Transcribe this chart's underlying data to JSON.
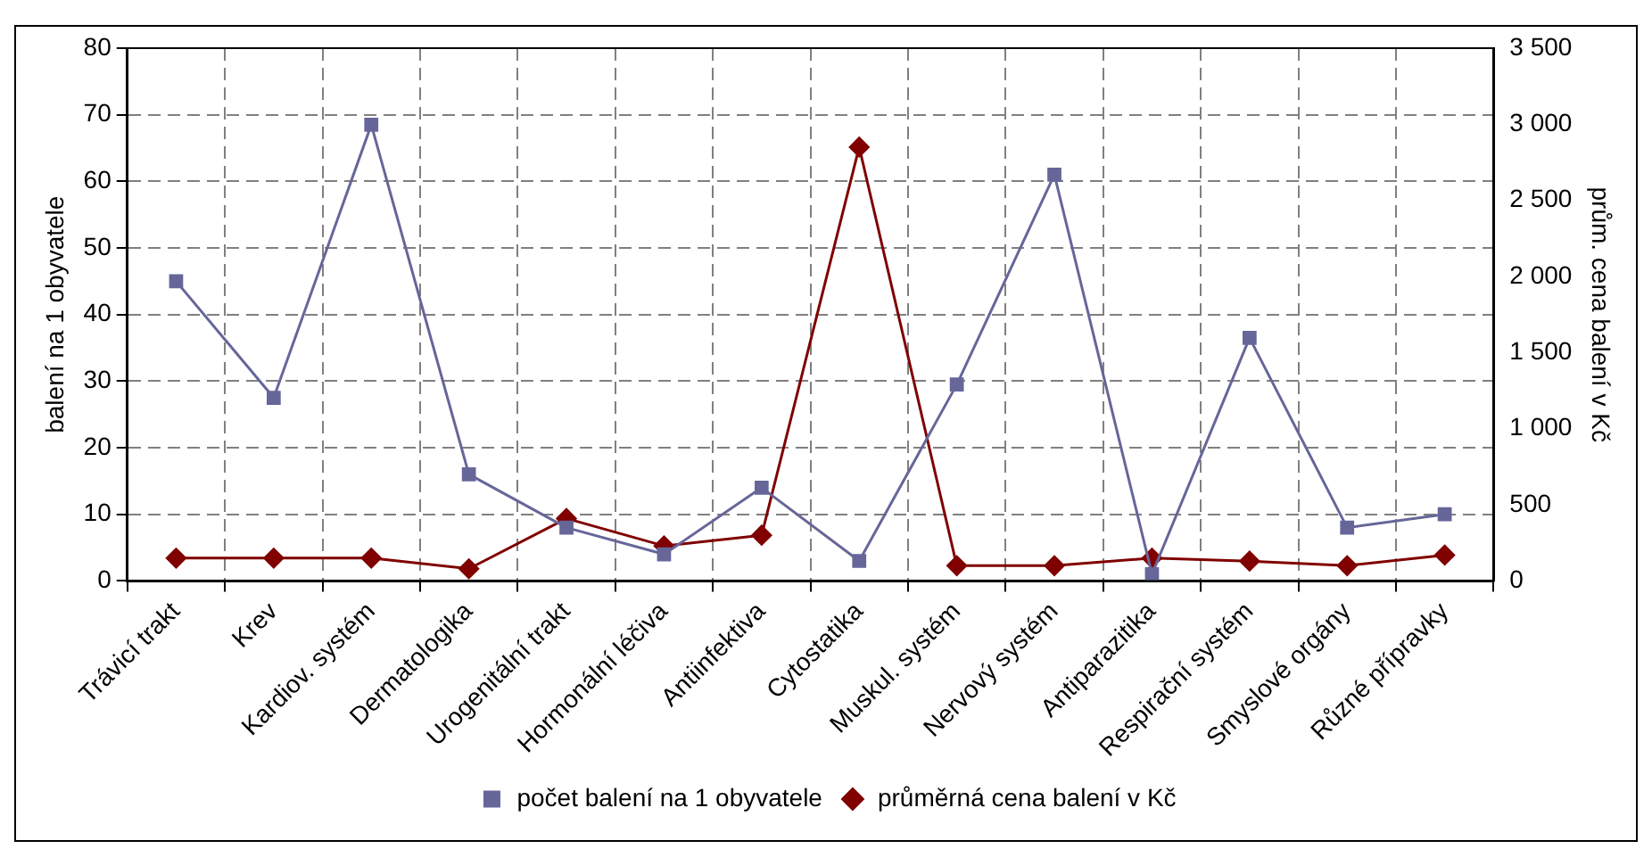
{
  "chart_data": {
    "type": "line",
    "ylabel": "balení na 1 obyvatele",
    "y2label": "prům. cena balení v Kč",
    "categories": [
      "Trávicí trakt",
      "Krev",
      "Kardiov. systém",
      "Dermatologika",
      "Urogenitální trakt",
      "Hormonální léčiva",
      "Antiinfektiva",
      "Cytostatika",
      "Muskul. systém",
      "Nervový systém",
      "Antiparazitika",
      "Respirační systém",
      "Smyslové orgány",
      "Různé přípravky"
    ],
    "series": [
      {
        "name": "počet balení na 1 obyvatele",
        "color": "#666699",
        "marker": "square",
        "values": [
          45,
          27.5,
          68.5,
          16,
          8,
          4,
          14,
          3,
          29.5,
          61,
          1,
          36.5,
          8,
          10
        ]
      },
      {
        "name": "průměrná cena balení v Kč",
        "color": "#800000",
        "marker": "diamond",
        "axis": "y2",
        "values": [
          150,
          150,
          150,
          80,
          410,
          230,
          300,
          2850,
          100,
          100,
          150,
          130,
          100,
          170
        ]
      }
    ],
    "ylim": [
      0,
      80
    ],
    "yticks": [
      0,
      10,
      20,
      30,
      40,
      50,
      60,
      70,
      80
    ],
    "y2lim": [
      0,
      3500
    ],
    "y2ticks": [
      {
        "value": 0,
        "label": "0"
      },
      {
        "value": 500,
        "label": "500"
      },
      {
        "value": 1000,
        "label": "1 000"
      },
      {
        "value": 1500,
        "label": "1 500"
      },
      {
        "value": 2000,
        "label": "2 000"
      },
      {
        "value": 2500,
        "label": "2 500"
      },
      {
        "value": 3000,
        "label": "3 000"
      },
      {
        "value": 3500,
        "label": "3 500"
      }
    ],
    "grid": true,
    "legend": "bottom",
    "line_style": "solid"
  }
}
